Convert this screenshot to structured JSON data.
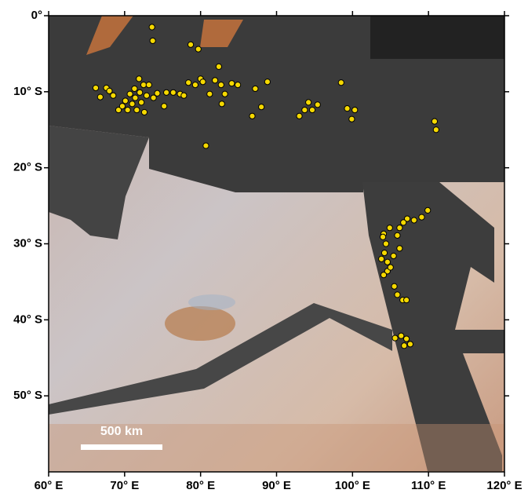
{
  "chart_data": {
    "type": "scatter",
    "x": [
      73.6,
      73.7,
      78.7,
      79.7,
      66.2,
      66.8,
      67.6,
      68.0,
      68.5,
      69.2,
      69.7,
      70.1,
      70.4,
      70.7,
      71.0,
      71.3,
      71.4,
      71.6,
      71.9,
      72.0,
      72.2,
      72.5,
      72.6,
      72.9,
      73.2,
      73.8,
      74.3,
      75.2,
      75.5,
      76.4,
      77.3,
      77.8,
      78.4,
      79.3,
      80.0,
      80.3,
      81.2,
      81.9,
      82.4,
      82.7,
      82.8,
      83.2,
      84.1,
      84.9,
      80.7,
      87.2,
      88.0,
      88.8,
      86.8,
      93.0,
      93.7,
      94.2,
      94.7,
      95.4,
      98.5,
      99.3,
      99.9,
      100.3,
      110.8,
      111.0,
      109.9,
      109.1,
      108.1,
      107.2,
      106.7,
      106.2,
      104.9,
      104.1,
      104.0,
      104.4,
      105.9,
      106.2,
      104.2,
      103.8,
      104.6,
      105.4,
      104.6,
      104.1,
      105.0,
      105.5,
      105.9,
      106.6,
      107.1,
      105.6,
      106.4,
      107.1,
      107.6,
      106.8
    ],
    "y": [
      1.5,
      3.3,
      3.8,
      4.4,
      9.5,
      10.7,
      9.5,
      9.9,
      10.5,
      12.4,
      11.9,
      11.2,
      12.4,
      10.3,
      11.6,
      9.6,
      10.8,
      12.4,
      8.3,
      10.1,
      11.4,
      9.1,
      12.7,
      10.5,
      9.1,
      10.8,
      10.2,
      11.9,
      10.1,
      10.1,
      10.3,
      10.5,
      8.8,
      9.1,
      8.3,
      8.7,
      10.3,
      8.5,
      6.7,
      9.1,
      11.6,
      10.3,
      8.9,
      9.1,
      17.1,
      9.6,
      12.0,
      8.7,
      13.2,
      13.2,
      12.4,
      11.4,
      12.4,
      11.7,
      8.8,
      12.2,
      13.6,
      12.4,
      13.9,
      15.0,
      25.6,
      26.5,
      26.9,
      26.7,
      27.2,
      27.9,
      27.9,
      28.7,
      29.1,
      30.0,
      28.9,
      30.6,
      31.2,
      32.0,
      32.4,
      31.6,
      33.6,
      34.1,
      33.1,
      35.6,
      36.7,
      37.4,
      37.4,
      42.4,
      42.1,
      42.5,
      43.2,
      43.4
    ],
    "color": "#f5d800",
    "xlim": [
      60,
      120
    ],
    "ylim": [
      0,
      60
    ],
    "xticks": [
      {
        "value": 60,
        "label": "60° E"
      },
      {
        "value": 70,
        "label": "70° E"
      },
      {
        "value": 80,
        "label": "80° E"
      },
      {
        "value": 90,
        "label": "90° E"
      },
      {
        "value": 100,
        "label": "100° E"
      },
      {
        "value": 110,
        "label": "110° E"
      },
      {
        "value": 120,
        "label": "120° E"
      }
    ],
    "yticks": [
      {
        "value": 0,
        "label": "0°"
      },
      {
        "value": 10,
        "label": "10° S"
      },
      {
        "value": 20,
        "label": "20° S"
      },
      {
        "value": 30,
        "label": "30° S"
      },
      {
        "value": 40,
        "label": "40° S"
      },
      {
        "value": 50,
        "label": "50° S"
      }
    ],
    "scale_bar_label": "500 km"
  }
}
